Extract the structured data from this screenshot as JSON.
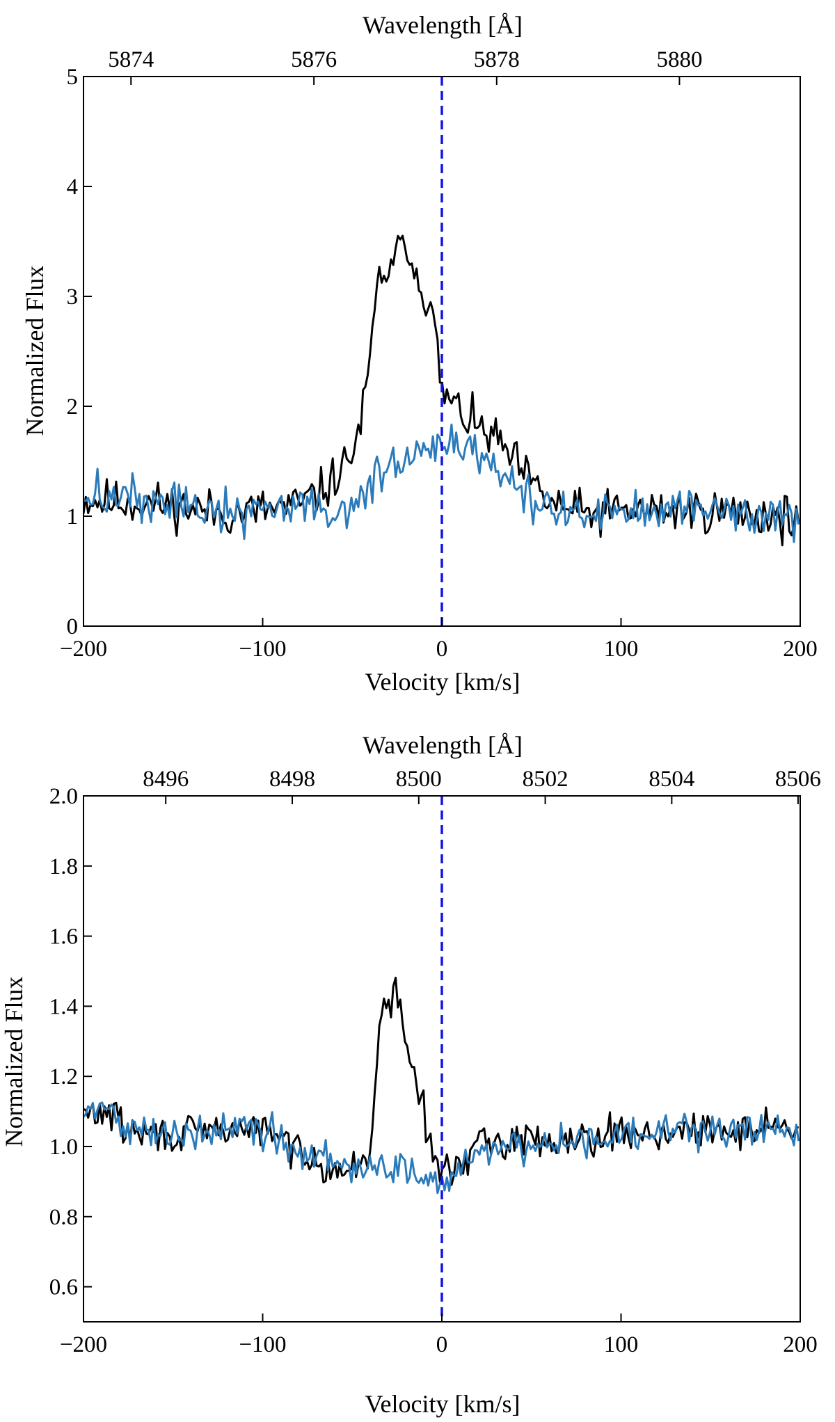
{
  "chart_data": [
    {
      "type": "line",
      "panel": "top",
      "xlabel": "Velocity [km/s]",
      "ylabel": "Normalized Flux",
      "top_xlabel": "Wavelength [Å]",
      "xlim": [
        -200,
        200
      ],
      "ylim": [
        0,
        5
      ],
      "xticks": [
        -200,
        -100,
        0,
        100,
        200
      ],
      "xtick_labels": [
        "−200",
        "−100",
        "0",
        "100",
        "200"
      ],
      "yticks": [
        0,
        1,
        2,
        3,
        4,
        5
      ],
      "ytick_labels": [
        "0",
        "1",
        "2",
        "3",
        "4",
        "5"
      ],
      "top_ticks_velocity": [
        -173.5,
        -71.4,
        30.6,
        132.6
      ],
      "top_tick_labels": [
        "5874",
        "5876",
        "5878",
        "5880"
      ],
      "vline": {
        "x": 0,
        "color": "#1414e6",
        "style": "dashed"
      },
      "noise": {
        "seed": 11,
        "step": 1.3,
        "amplitude": 0.1
      },
      "series": [
        {
          "name": "black",
          "color": "#000000",
          "profile": [
            [
              -200,
              1.15
            ],
            [
              -150,
              1.1
            ],
            [
              -120,
              1.02
            ],
            [
              -100,
              1.06
            ],
            [
              -80,
              1.1
            ],
            [
              -65,
              1.25
            ],
            [
              -55,
              1.45
            ],
            [
              -50,
              1.58
            ],
            [
              -45,
              1.85
            ],
            [
              -40,
              2.4
            ],
            [
              -36,
              3.1
            ],
            [
              -32,
              3.25
            ],
            [
              -28,
              3.2
            ],
            [
              -24,
              3.4
            ],
            [
              -21,
              3.7
            ],
            [
              -18,
              3.3
            ],
            [
              -14,
              3.25
            ],
            [
              -10,
              3.05
            ],
            [
              -6,
              2.85
            ],
            [
              -3,
              2.6
            ],
            [
              0,
              2.1
            ],
            [
              5,
              2.05
            ],
            [
              10,
              1.95
            ],
            [
              20,
              1.8
            ],
            [
              30,
              1.7
            ],
            [
              40,
              1.5
            ],
            [
              50,
              1.3
            ],
            [
              60,
              1.12
            ],
            [
              80,
              1.02
            ],
            [
              100,
              1.05
            ],
            [
              150,
              1.05
            ],
            [
              200,
              0.98
            ]
          ]
        },
        {
          "name": "blue",
          "color": "#2b7bba",
          "profile": [
            [
              -200,
              1.2
            ],
            [
              -150,
              1.12
            ],
            [
              -120,
              1.02
            ],
            [
              -100,
              1.06
            ],
            [
              -80,
              1.08
            ],
            [
              -70,
              1.12
            ],
            [
              -60,
              1.02
            ],
            [
              -50,
              1.05
            ],
            [
              -40,
              1.3
            ],
            [
              -30,
              1.45
            ],
            [
              -20,
              1.5
            ],
            [
              -10,
              1.55
            ],
            [
              0,
              1.6
            ],
            [
              10,
              1.65
            ],
            [
              20,
              1.6
            ],
            [
              30,
              1.45
            ],
            [
              40,
              1.25
            ],
            [
              50,
              1.12
            ],
            [
              60,
              1.05
            ],
            [
              80,
              1.02
            ],
            [
              100,
              1.04
            ],
            [
              150,
              1.05
            ],
            [
              200,
              0.98
            ]
          ]
        }
      ]
    },
    {
      "type": "line",
      "panel": "bottom",
      "xlabel": "Velocity [km/s]",
      "ylabel": "Normalized Flux",
      "top_xlabel": "Wavelength [Å]",
      "xlim": [
        -200,
        200
      ],
      "ylim": [
        0.5,
        2.0
      ],
      "xticks": [
        -200,
        -100,
        0,
        100,
        200
      ],
      "xtick_labels": [
        "−200",
        "−100",
        "0",
        "100",
        "200"
      ],
      "yticks": [
        0.6,
        0.8,
        1.0,
        1.2,
        1.4,
        1.6,
        1.8,
        2.0
      ],
      "ytick_labels": [
        "0.6",
        "0.8",
        "1.0",
        "1.2",
        "1.4",
        "1.6",
        "1.8",
        "2.0"
      ],
      "top_ticks_velocity": [
        -154.1,
        -83.5,
        -12.9,
        57.7,
        128.3,
        198.8
      ],
      "top_tick_labels": [
        "8496",
        "8498",
        "8500",
        "8502",
        "8504",
        "8506"
      ],
      "vline": {
        "x": 0,
        "color": "#1414e6",
        "style": "dashed"
      },
      "noise": {
        "seed": 29,
        "step": 1.3,
        "amplitude": 0.025
      },
      "series": [
        {
          "name": "black",
          "color": "#000000",
          "profile": [
            [
              -200,
              1.09
            ],
            [
              -185,
              1.1
            ],
            [
              -175,
              1.04
            ],
            [
              -150,
              1.03
            ],
            [
              -120,
              1.05
            ],
            [
              -100,
              1.05
            ],
            [
              -90,
              1.02
            ],
            [
              -80,
              0.99
            ],
            [
              -70,
              0.97
            ],
            [
              -60,
              0.93
            ],
            [
              -50,
              0.93
            ],
            [
              -45,
              0.95
            ],
            [
              -40,
              1.0
            ],
            [
              -37,
              1.2
            ],
            [
              -34,
              1.36
            ],
            [
              -31,
              1.39
            ],
            [
              -28,
              1.42
            ],
            [
              -25,
              1.44
            ],
            [
              -22,
              1.36
            ],
            [
              -18,
              1.25
            ],
            [
              -14,
              1.18
            ],
            [
              -10,
              1.1
            ],
            [
              -7,
              1.0
            ],
            [
              -4,
              0.96
            ],
            [
              0,
              0.94
            ],
            [
              5,
              0.92
            ],
            [
              10,
              0.96
            ],
            [
              20,
              1.0
            ],
            [
              40,
              1.02
            ],
            [
              60,
              1.02
            ],
            [
              80,
              1.03
            ],
            [
              100,
              1.04
            ],
            [
              130,
              1.04
            ],
            [
              160,
              1.04
            ],
            [
              190,
              1.07
            ],
            [
              200,
              1.02
            ]
          ]
        },
        {
          "name": "blue",
          "color": "#2b7bba",
          "profile": [
            [
              -200,
              1.1
            ],
            [
              -185,
              1.11
            ],
            [
              -175,
              1.04
            ],
            [
              -150,
              1.03
            ],
            [
              -120,
              1.05
            ],
            [
              -100,
              1.05
            ],
            [
              -90,
              1.02
            ],
            [
              -80,
              0.99
            ],
            [
              -70,
              0.97
            ],
            [
              -60,
              0.95
            ],
            [
              -50,
              0.94
            ],
            [
              -40,
              0.94
            ],
            [
              -30,
              0.94
            ],
            [
              -20,
              0.93
            ],
            [
              -10,
              0.92
            ],
            [
              0,
              0.89
            ],
            [
              5,
              0.9
            ],
            [
              10,
              0.95
            ],
            [
              20,
              0.99
            ],
            [
              40,
              1.01
            ],
            [
              60,
              1.01
            ],
            [
              80,
              1.02
            ],
            [
              100,
              1.03
            ],
            [
              130,
              1.04
            ],
            [
              160,
              1.04
            ],
            [
              190,
              1.06
            ],
            [
              200,
              1.04
            ]
          ]
        }
      ]
    }
  ]
}
